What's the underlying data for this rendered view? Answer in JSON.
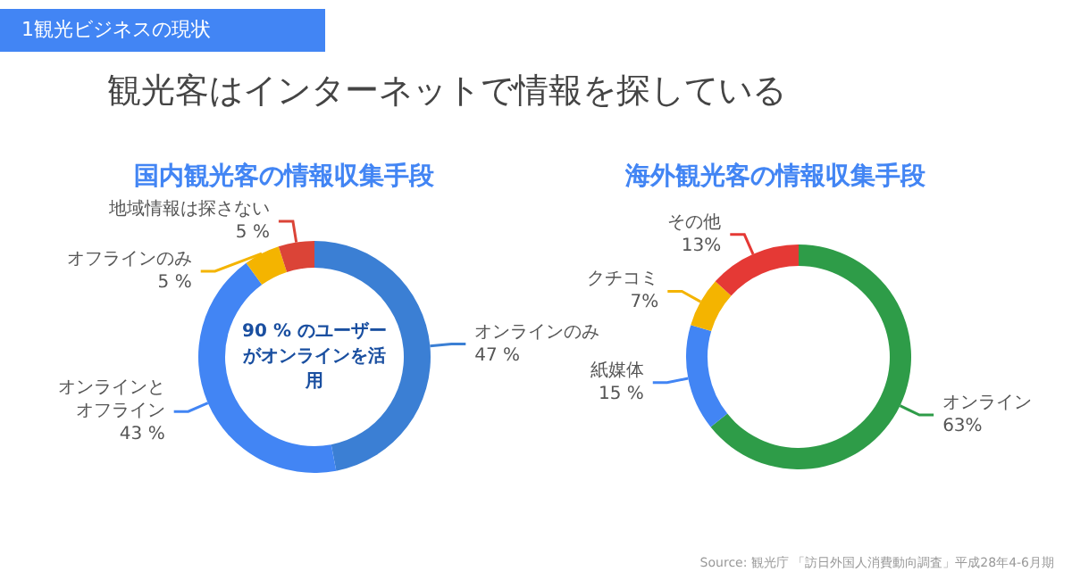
{
  "chart_data": [
    {
      "type": "donut",
      "title": "国内観光客の情報収集手段",
      "annotations": [
        "1観光ビジネスの現状",
        "観光客はインターネットで情報を探している",
        "90 % のユーザーがオンラインを活用"
      ],
      "categories": [
        "オンラインのみ",
        "オンラインとオフライン",
        "オフラインのみ",
        "地域情報は探さない"
      ],
      "values": [
        47,
        43,
        5,
        5
      ],
      "value_labels": [
        "47 %",
        "43 %",
        "5 %",
        "5 %"
      ],
      "colors": [
        "#3b7fd4",
        "#4285f4",
        "#f4b400",
        "#db4437"
      ]
    },
    {
      "type": "donut",
      "title": "海外観光客の情報収集手段",
      "annotations": [
        "Source: 観光庁 「訪日外国人消費動向調査」平成28年4-6月期"
      ],
      "categories": [
        "オンライン",
        "紙媒体",
        "クチコミ",
        "その他"
      ],
      "values": [
        63,
        15,
        7,
        13
      ],
      "value_labels": [
        "63%",
        "15 %",
        "7%",
        "13%"
      ],
      "colors": [
        "#2e9c48",
        "#4285f4",
        "#f4b400",
        "#e53935"
      ]
    }
  ]
}
